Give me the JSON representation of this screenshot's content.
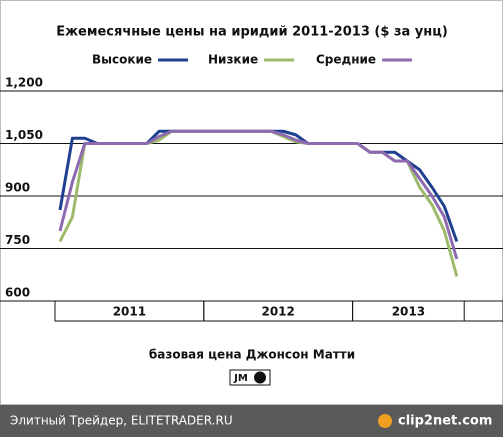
{
  "chart_data": {
    "type": "line",
    "title": "Ежемесячные цены на иридий 2011-2013 ($ за унц)",
    "categories": [
      null,
      null,
      null,
      null,
      null,
      null,
      null,
      null,
      null,
      null,
      null,
      null,
      null,
      null,
      null,
      null,
      null,
      null,
      null,
      null,
      null,
      null,
      null,
      null,
      null,
      null,
      null,
      null,
      null,
      null,
      null,
      null,
      null
    ],
    "x_groups": [
      {
        "label": "2011",
        "count": 12
      },
      {
        "label": "2012",
        "count": 12
      },
      {
        "label": "2013",
        "count": 9
      }
    ],
    "series": [
      {
        "name": "Высокие",
        "color": "#1f3f8f",
        "values": [
          860,
          1065,
          1065,
          1050,
          1050,
          1050,
          1050,
          1050,
          1085,
          1085,
          1085,
          1085,
          1085,
          1085,
          1085,
          1085,
          1085,
          1085,
          1085,
          1075,
          1050,
          1050,
          1050,
          1050,
          1050,
          1025,
          1025,
          1025,
          1000,
          975,
          925,
          870,
          770
        ]
      },
      {
        "name": "Низкие",
        "color": "#9bbb6a",
        "values": [
          770,
          840,
          1050,
          1050,
          1050,
          1050,
          1050,
          1050,
          1060,
          1085,
          1085,
          1085,
          1085,
          1085,
          1085,
          1085,
          1085,
          1085,
          1070,
          1055,
          1050,
          1050,
          1050,
          1050,
          1050,
          1025,
          1025,
          1000,
          1000,
          925,
          875,
          800,
          670
        ]
      },
      {
        "name": "Средние",
        "color": "#8e6bb0",
        "values": [
          800,
          940,
          1050,
          1050,
          1050,
          1050,
          1050,
          1050,
          1070,
          1085,
          1085,
          1085,
          1085,
          1085,
          1085,
          1085,
          1085,
          1085,
          1075,
          1060,
          1050,
          1050,
          1050,
          1050,
          1050,
          1025,
          1025,
          1000,
          1000,
          950,
          900,
          840,
          720
        ]
      }
    ],
    "ylim": [
      600,
      1200
    ],
    "yticks": [
      600,
      750,
      900,
      {
        "value": 1050,
        "label": "1,050"
      },
      {
        "value": 1200,
        "label": "1,200"
      }
    ],
    "grid": true,
    "source": "базовая цена Джонсон Матти",
    "logo": "JM"
  },
  "footer": {
    "left": "Элитный Трейдер, ELITETRADER.RU",
    "right": "clip2net.com"
  }
}
